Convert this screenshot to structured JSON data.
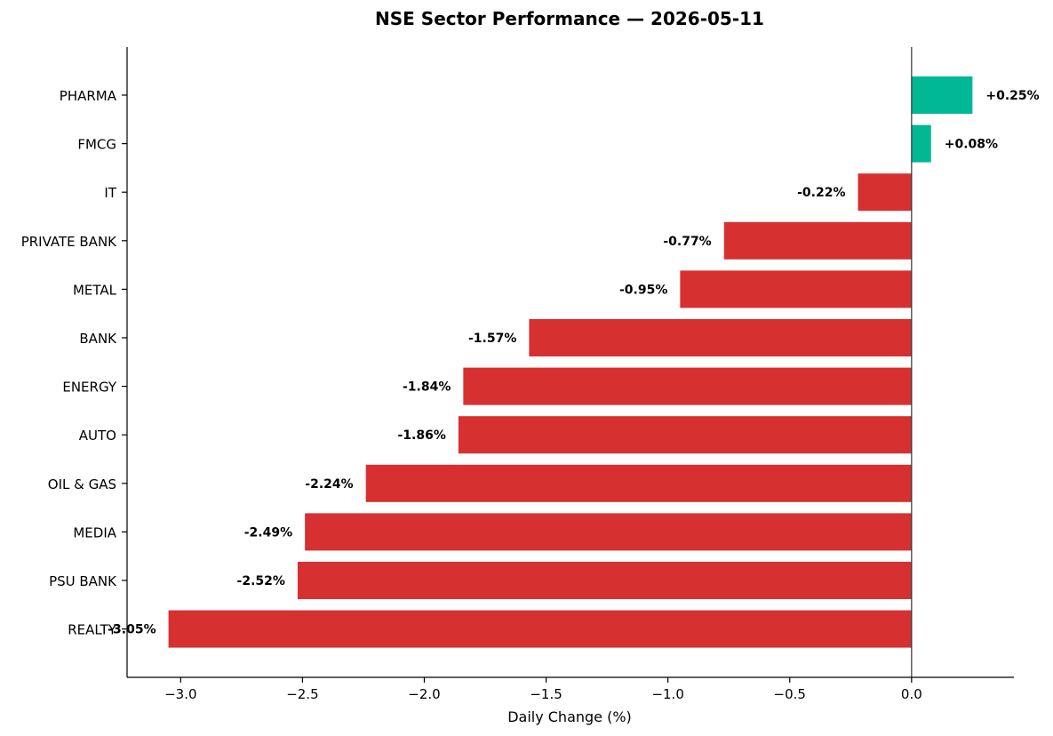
{
  "chart_data": {
    "type": "bar",
    "orientation": "horizontal",
    "title": "NSE Sector Performance — 2026-05-11",
    "xlabel": "Daily Change (%)",
    "ylabel": "",
    "xlim": [
      -3.22,
      0.42
    ],
    "xticks": [
      -3.0,
      -2.5,
      -2.0,
      -1.5,
      -1.0,
      -0.5,
      0.0
    ],
    "xtick_labels": [
      "−3.0",
      "−2.5",
      "−2.0",
      "−1.5",
      "−1.0",
      "−0.5",
      "0.0"
    ],
    "grid": false,
    "categories": [
      "PHARMA",
      "FMCG",
      "IT",
      "PRIVATE BANK",
      "METAL",
      "BANK",
      "ENERGY",
      "AUTO",
      "OIL & GAS",
      "MEDIA",
      "PSU BANK",
      "REALTY"
    ],
    "values": [
      0.25,
      0.08,
      -0.22,
      -0.77,
      -0.95,
      -1.57,
      -1.84,
      -1.86,
      -2.24,
      -2.49,
      -2.52,
      -3.05
    ],
    "data_labels": [
      "+0.25%",
      "+0.08%",
      "-0.22%",
      "-0.77%",
      "-0.95%",
      "-1.57%",
      "-1.84%",
      "-1.86%",
      "-2.24%",
      "-2.49%",
      "-2.52%",
      "-3.05%"
    ],
    "colors": {
      "positive": "#00b894",
      "negative": "#d63031"
    }
  }
}
